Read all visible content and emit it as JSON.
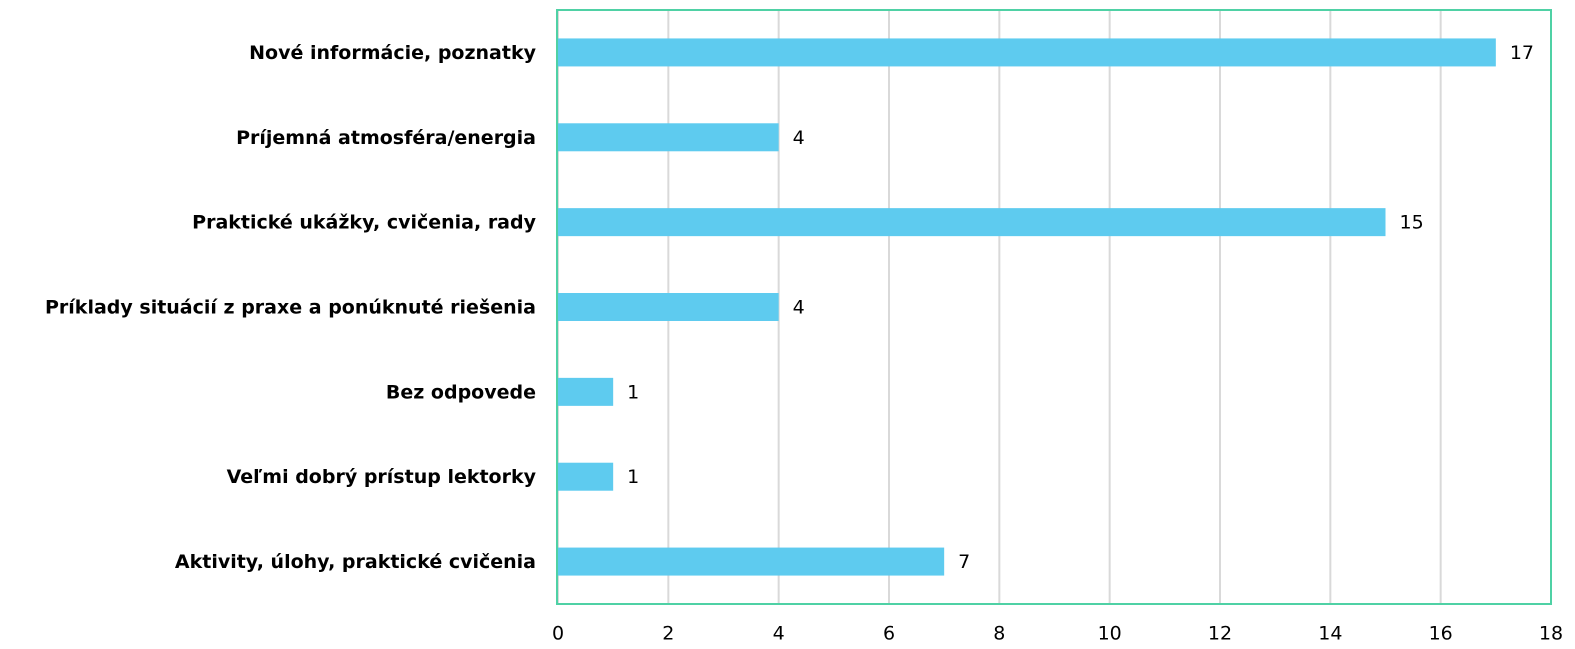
{
  "chart_data": {
    "type": "bar",
    "orientation": "horizontal",
    "categories": [
      "Nové informácie, poznatky",
      "Príjemná atmosféra/energia",
      "Praktické ukážky, cvičenia, rady",
      "Príklady situácií z praxe a ponúknuté riešenia",
      "Bez odpovede",
      "Veľmi dobrý prístup lektorky",
      "Aktivity, úlohy, praktické cvičenia"
    ],
    "values": [
      17,
      4,
      15,
      4,
      1,
      1,
      7
    ],
    "color": "#5ecbef",
    "xlim": [
      0,
      18
    ],
    "xticks": [
      0,
      2,
      4,
      6,
      8,
      10,
      12,
      14,
      16,
      18
    ],
    "grid": true
  }
}
